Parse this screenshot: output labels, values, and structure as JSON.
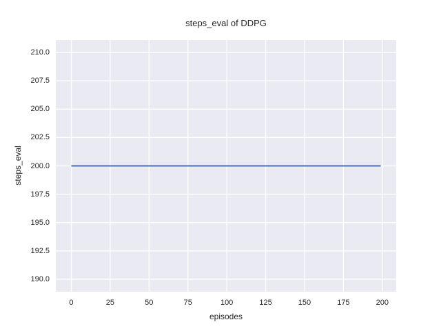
{
  "colors": {
    "figure_bg": "#ffffff",
    "plot_bg": "#eaeaf2",
    "grid": "#ffffff",
    "text": "#262626",
    "line": "#4c72b0"
  },
  "chart_data": {
    "type": "line",
    "title": "steps_eval of DDPG",
    "xlabel": "episodes",
    "ylabel": "steps_eval",
    "xlim": [
      -9.95,
      208.95
    ],
    "ylim": [
      188.9,
      211.1
    ],
    "x_ticks": [
      0,
      25,
      50,
      75,
      100,
      125,
      150,
      175,
      200
    ],
    "x_tick_labels": [
      "0",
      "25",
      "50",
      "75",
      "100",
      "125",
      "150",
      "175",
      "200"
    ],
    "y_ticks": [
      190,
      192.5,
      195,
      197.5,
      200,
      202.5,
      205,
      207.5,
      210
    ],
    "y_tick_labels": [
      "190.0",
      "192.5",
      "195.0",
      "197.5",
      "200.0",
      "202.5",
      "205.0",
      "207.5",
      "210.0"
    ],
    "grid": true,
    "legend_position": "none",
    "series": [
      {
        "name": "DDPG",
        "color": "#4c72b0",
        "x": [
          0,
          199
        ],
        "y": [
          200,
          200
        ]
      }
    ]
  }
}
